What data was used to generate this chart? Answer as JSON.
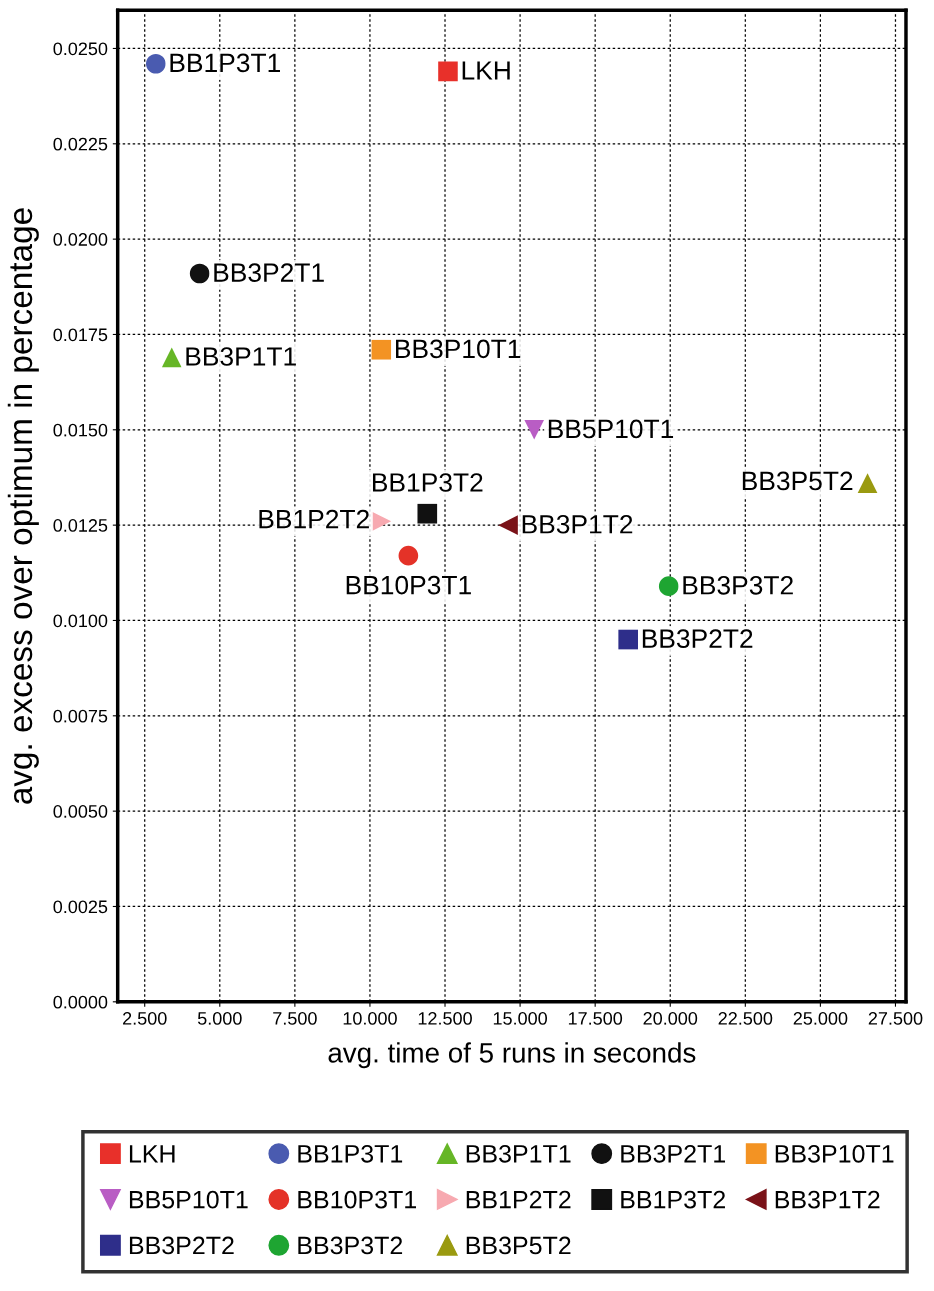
{
  "chart_data": {
    "type": "scatter",
    "xlabel": "avg. time of 5 runs in seconds",
    "ylabel": "avg. excess over optimum in percentage",
    "xlim": [
      1.6,
      27.85
    ],
    "ylim": [
      0,
      0.026
    ],
    "xticks": [
      {
        "value": 2.5,
        "label": "2.500"
      },
      {
        "value": 5,
        "label": "5.000"
      },
      {
        "value": 7.5,
        "label": "7.500"
      },
      {
        "value": 10,
        "label": "10.000"
      },
      {
        "value": 12.5,
        "label": "12.500"
      },
      {
        "value": 15,
        "label": "15.000"
      },
      {
        "value": 17.5,
        "label": "17.500"
      },
      {
        "value": 20,
        "label": "20.000"
      },
      {
        "value": 22.5,
        "label": "22.500"
      },
      {
        "value": 25,
        "label": "25.000"
      },
      {
        "value": 27.5,
        "label": "27.500"
      }
    ],
    "yticks": [
      {
        "value": 0,
        "label": "0.0000"
      },
      {
        "value": 0.0025,
        "label": "0.0025"
      },
      {
        "value": 0.005,
        "label": "0.0050"
      },
      {
        "value": 0.0075,
        "label": "0.0075"
      },
      {
        "value": 0.01,
        "label": "0.0100"
      },
      {
        "value": 0.0125,
        "label": "0.0125"
      },
      {
        "value": 0.015,
        "label": "0.0150"
      },
      {
        "value": 0.0175,
        "label": "0.0175"
      },
      {
        "value": 0.02,
        "label": "0.0200"
      },
      {
        "value": 0.0225,
        "label": "0.0225"
      },
      {
        "value": 0.025,
        "label": "0.0250"
      }
    ],
    "grid": true,
    "legend": "bottom",
    "series": [
      {
        "name": "LKH",
        "color": "#e8302a",
        "marker": "square",
        "x": [
          12.6
        ],
        "values": [
          0.0244
        ]
      },
      {
        "name": "BB1P3T1",
        "color": "#4a5bb0",
        "marker": "circle",
        "x": [
          2.87
        ],
        "values": [
          0.0246
        ]
      },
      {
        "name": "BB3P1T1",
        "color": "#66b626",
        "marker": "triangle",
        "x": [
          3.4
        ],
        "values": [
          0.0169
        ]
      },
      {
        "name": "BB3P2T1",
        "color": "#111111",
        "marker": "circle",
        "x": [
          4.33
        ],
        "values": [
          0.0191
        ]
      },
      {
        "name": "BB3P10T1",
        "color": "#f39323",
        "marker": "square",
        "x": [
          10.38
        ],
        "values": [
          0.0171
        ]
      },
      {
        "name": "BB5P10T1",
        "color": "#b95dc4",
        "marker": "triangle_down",
        "x": [
          15.47
        ],
        "values": [
          0.015
        ]
      },
      {
        "name": "BB10P3T1",
        "color": "#e43228",
        "marker": "circle",
        "x": [
          11.28
        ],
        "values": [
          0.0117
        ]
      },
      {
        "name": "BB1P2T2",
        "color": "#f7a9b0",
        "marker": "triangle_right",
        "x": [
          10.38
        ],
        "values": [
          0.0126
        ]
      },
      {
        "name": "BB1P3T2",
        "color": "#111111",
        "marker": "square",
        "x": [
          11.91
        ],
        "values": [
          0.0128
        ]
      },
      {
        "name": "BB3P1T2",
        "color": "#7a1218",
        "marker": "triangle_left",
        "x": [
          14.6
        ],
        "values": [
          0.0125
        ]
      },
      {
        "name": "BB3P2T2",
        "color": "#2e2e8a",
        "marker": "square",
        "x": [
          18.6
        ],
        "values": [
          0.0095
        ]
      },
      {
        "name": "BB3P3T2",
        "color": "#1ea532",
        "marker": "circle",
        "x": [
          19.95
        ],
        "values": [
          0.0109
        ]
      },
      {
        "name": "BB3P5T2",
        "color": "#9a9a10",
        "marker": "triangle",
        "x": [
          26.57
        ],
        "values": [
          0.0136
        ]
      }
    ]
  }
}
